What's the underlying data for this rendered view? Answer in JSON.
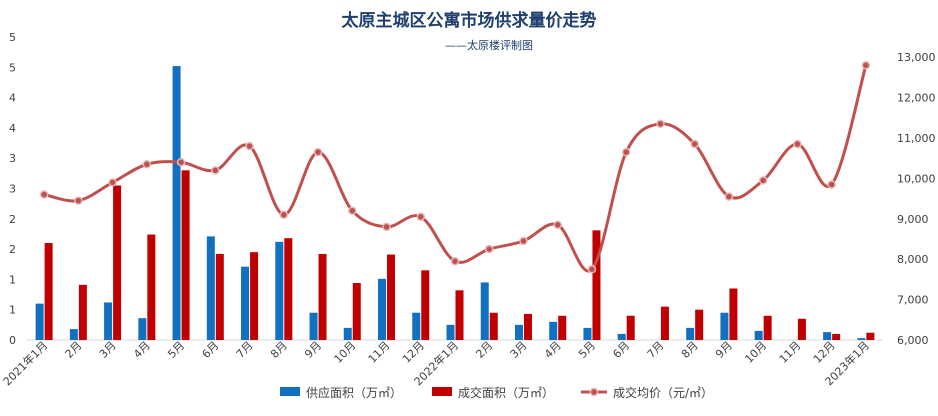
{
  "chart_data": {
    "type": "bar",
    "title": "太原主城区公寓市场供求量价走势",
    "subtitle": "——太原楼评制图",
    "categories": [
      "2021年1月",
      "2月",
      "3月",
      "4月",
      "5月",
      "6月",
      "7月",
      "8月",
      "9月",
      "10月",
      "11月",
      "12月",
      "2022年1月",
      "2月",
      "3月",
      "4月",
      "5月",
      "6月",
      "7月",
      "8月",
      "9月",
      "10月",
      "11月",
      "12月",
      "2023年1月"
    ],
    "left_axis": {
      "tick_labels": [
        "0",
        "1",
        "1",
        "2",
        "2",
        "3",
        "3",
        "4",
        "4",
        "5",
        "5"
      ],
      "ylim": [
        0,
        5
      ]
    },
    "right_axis": {
      "tick_labels": [
        "6,000",
        "7,000",
        "8,000",
        "9,000",
        "10,000",
        "11,000",
        "12,000",
        "13,000"
      ],
      "ylim": [
        6000,
        13500
      ]
    },
    "series": [
      {
        "name": "供应面积（万㎡）",
        "type": "bar",
        "axis": "left",
        "color": "#1170c0",
        "values": [
          0.6,
          0.18,
          0.62,
          0.36,
          4.52,
          1.71,
          1.21,
          1.62,
          0.45,
          0.2,
          1.01,
          0.45,
          0.25,
          0.95,
          0.25,
          0.3,
          0.2,
          0.1,
          0,
          0.2,
          0.45,
          0.15,
          0,
          0.13,
          0.03
        ]
      },
      {
        "name": "成交面积（万㎡）",
        "type": "bar",
        "axis": "left",
        "color": "#c00000",
        "values": [
          1.6,
          0.91,
          2.55,
          1.74,
          2.8,
          1.42,
          1.45,
          1.68,
          1.42,
          0.94,
          1.41,
          1.15,
          0.82,
          0.45,
          0.43,
          0.4,
          1.81,
          0.4,
          0.55,
          0.5,
          0.85,
          0.4,
          0.35,
          0.1,
          0.12
        ]
      },
      {
        "name": "成交均价（元/㎡）",
        "type": "line",
        "axis": "right",
        "color": "#c0504d",
        "values": [
          9600,
          9450,
          9900,
          10350,
          10400,
          10200,
          10800,
          9100,
          10650,
          9200,
          8800,
          9050,
          7950,
          8250,
          8450,
          8850,
          7750,
          10650,
          11350,
          10850,
          9550,
          9950,
          10850,
          9850,
          12800
        ]
      }
    ],
    "grid": false,
    "legend_position": "bottom"
  }
}
